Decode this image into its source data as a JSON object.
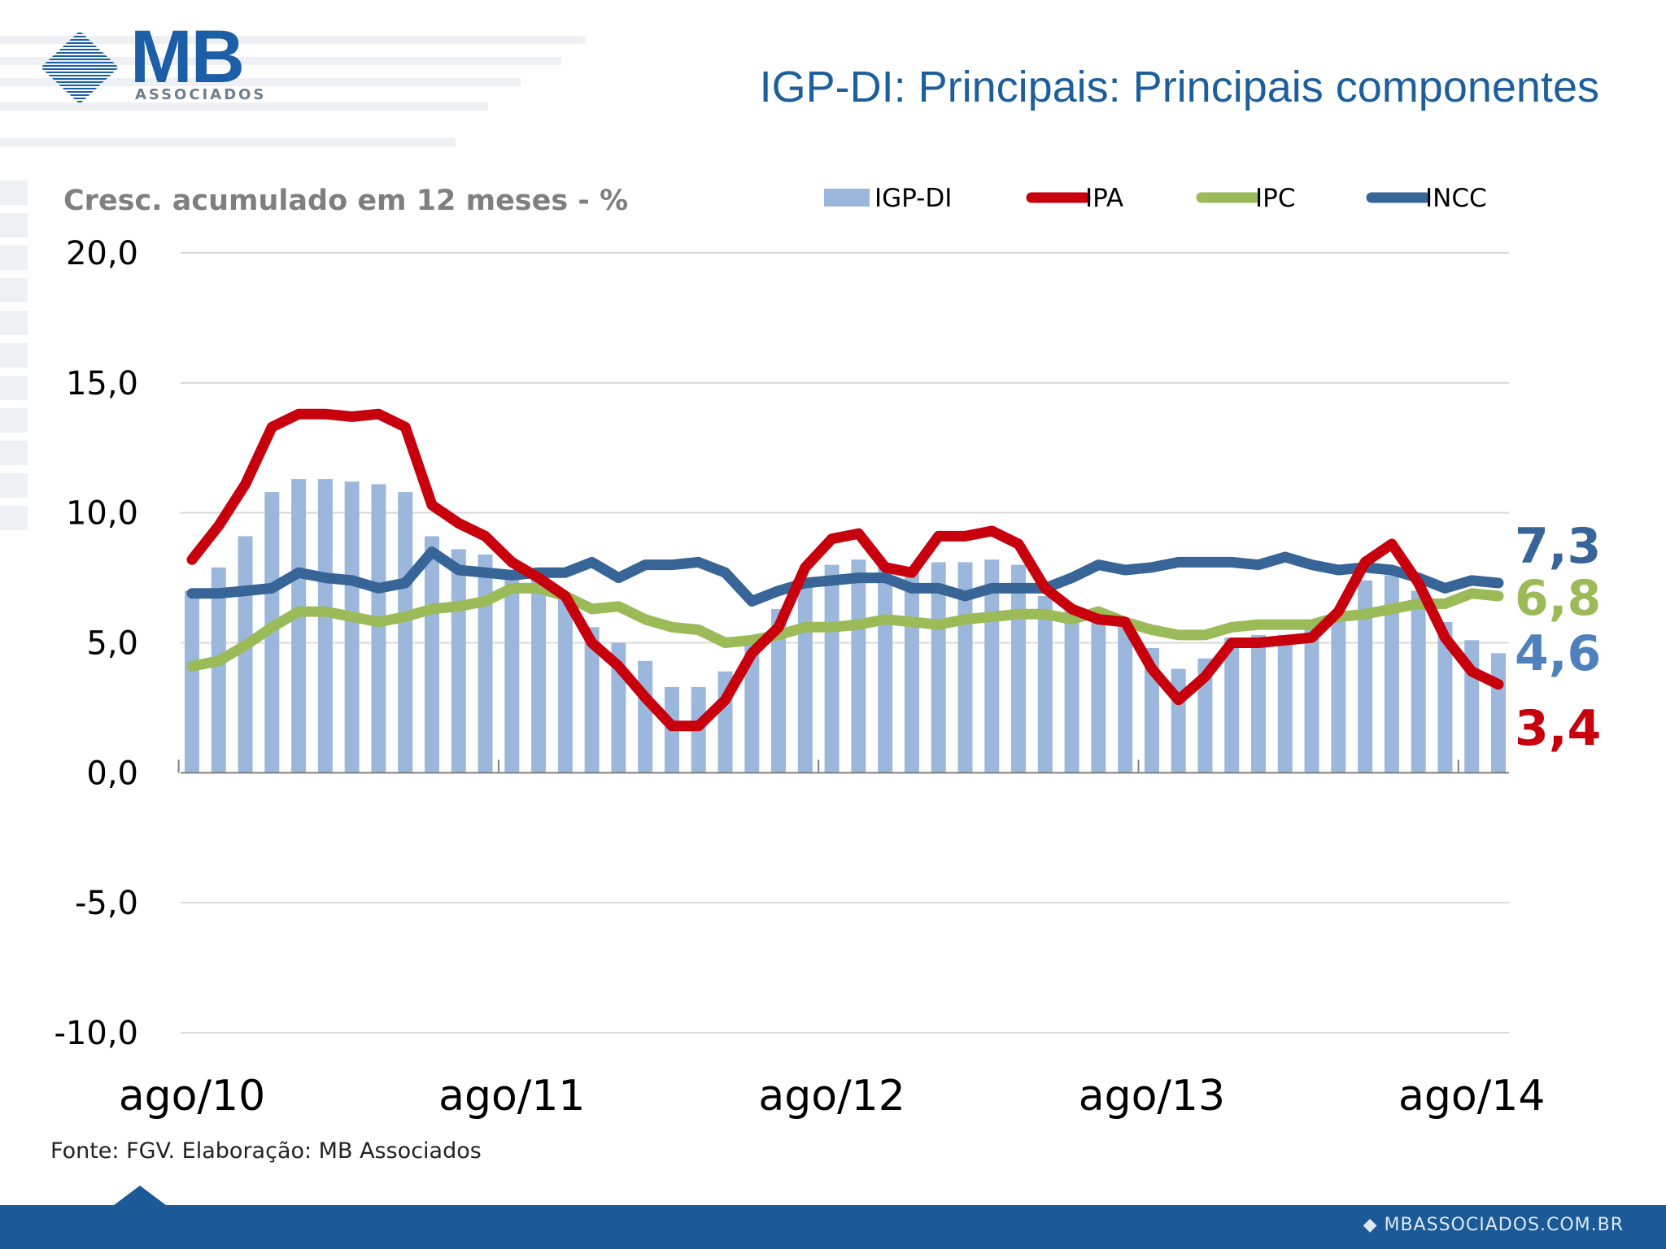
{
  "header": {
    "logo_main": "MB",
    "logo_sub": "ASSOCIADOS",
    "title": "IGP-DI: Principais: Principais componentes"
  },
  "source_note": "Fonte: FGV. Elaboração: MB Associados",
  "footer": {
    "url": "MBASSOCIADOS.COM.BR"
  },
  "colors": {
    "igp_di": "#9bb7dc",
    "ipa": "#c8000e",
    "ipc": "#9bbb59",
    "incc": "#386597",
    "title": "#1d5f9c",
    "footer": "#1b5a97"
  },
  "chart_data": {
    "type": "bar+line",
    "title": "",
    "ylabel": "Cresc. acumulado em 12 meses - %",
    "xlabel": "",
    "ylim": [
      -10,
      20
    ],
    "yticks": [
      20,
      15,
      10,
      5,
      0,
      -5,
      -10
    ],
    "ytick_labels": [
      "20,0",
      "15,0",
      "10,0",
      "5,0",
      "0,0",
      "-5,0",
      "-10,0"
    ],
    "xtick_labels": [
      "ago/10",
      "ago/11",
      "ago/12",
      "ago/13",
      "ago/14"
    ],
    "xtick_index": [
      0,
      12,
      24,
      36,
      48
    ],
    "grid": true,
    "legend_position": "top-right",
    "series": [
      {
        "name": "IGP-DI",
        "type": "bar",
        "values": [
          7.0,
          7.9,
          9.1,
          10.8,
          11.3,
          11.3,
          11.2,
          11.1,
          10.8,
          9.1,
          8.6,
          8.4,
          7.8,
          7.6,
          6.8,
          5.6,
          5.0,
          4.3,
          3.3,
          3.3,
          3.9,
          5.0,
          6.3,
          7.3,
          8.0,
          8.2,
          8.0,
          7.8,
          8.1,
          8.1,
          8.2,
          8.0,
          6.8,
          6.3,
          6.0,
          5.9,
          4.8,
          4.0,
          4.4,
          5.2,
          5.3,
          5.3,
          5.5,
          6.1,
          7.4,
          7.6,
          7.0,
          5.8,
          5.1,
          4.6
        ]
      },
      {
        "name": "IPA",
        "type": "line",
        "end_label": "3,4",
        "values": [
          8.2,
          9.5,
          11.1,
          13.3,
          13.8,
          13.8,
          13.7,
          13.8,
          13.3,
          10.3,
          9.6,
          9.1,
          8.1,
          7.5,
          6.8,
          5.0,
          4.1,
          2.9,
          1.8,
          1.8,
          2.8,
          4.6,
          5.6,
          7.9,
          9.0,
          9.2,
          7.9,
          7.7,
          9.1,
          9.1,
          9.3,
          8.8,
          7.1,
          6.3,
          5.9,
          5.8,
          4.0,
          2.8,
          3.7,
          5.0,
          5.0,
          5.1,
          5.2,
          6.2,
          8.1,
          8.8,
          7.3,
          5.2,
          3.9,
          3.4
        ]
      },
      {
        "name": "IPC",
        "type": "line",
        "end_label": "6,8",
        "values": [
          4.1,
          4.3,
          4.9,
          5.6,
          6.2,
          6.2,
          6.0,
          5.8,
          6.0,
          6.3,
          6.4,
          6.6,
          7.1,
          7.1,
          6.8,
          6.3,
          6.4,
          5.9,
          5.6,
          5.5,
          5.0,
          5.1,
          5.3,
          5.6,
          5.6,
          5.7,
          5.9,
          5.8,
          5.7,
          5.9,
          6.0,
          6.1,
          6.1,
          5.9,
          6.2,
          5.8,
          5.5,
          5.3,
          5.3,
          5.6,
          5.7,
          5.7,
          5.7,
          6.0,
          6.1,
          6.3,
          6.5,
          6.5,
          6.9,
          6.8
        ]
      },
      {
        "name": "INCC",
        "type": "line",
        "end_label": "7,3",
        "values": [
          6.9,
          6.9,
          7.0,
          7.1,
          7.7,
          7.5,
          7.4,
          7.1,
          7.3,
          8.5,
          7.8,
          7.7,
          7.6,
          7.7,
          7.7,
          8.1,
          7.5,
          8.0,
          8.0,
          8.1,
          7.7,
          6.6,
          7.0,
          7.3,
          7.4,
          7.5,
          7.5,
          7.1,
          7.1,
          6.8,
          7.1,
          7.1,
          7.1,
          7.5,
          8.0,
          7.8,
          7.9,
          8.1,
          8.1,
          8.1,
          8.0,
          8.3,
          8.0,
          7.8,
          7.9,
          7.8,
          7.5,
          7.1,
          7.4,
          7.3
        ]
      }
    ],
    "end_labels_extra": [
      {
        "series": "IGP-DI",
        "label": "4,6"
      }
    ]
  }
}
